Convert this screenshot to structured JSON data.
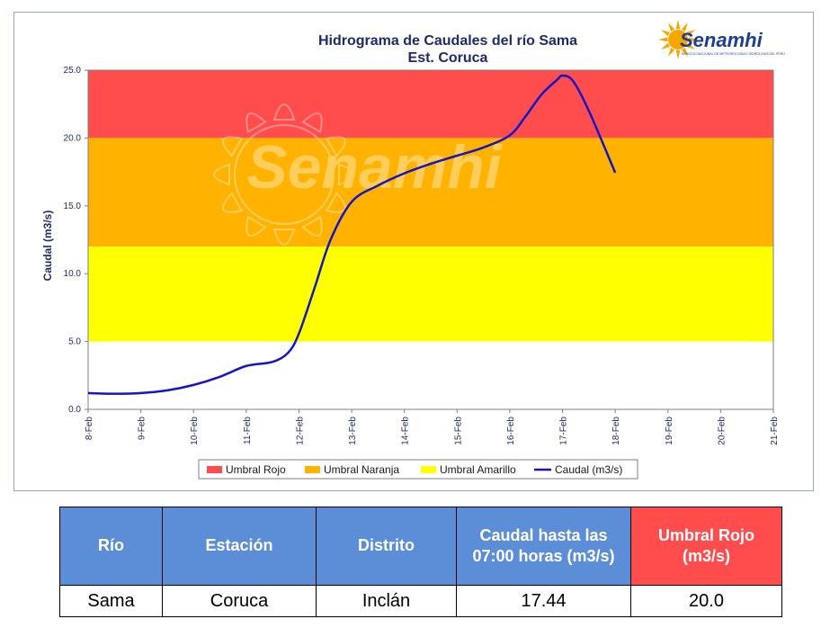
{
  "chart_data": {
    "type": "line",
    "title": "Hidrograma de Caudales del río Sama",
    "subtitle": "Est. Coruca",
    "ylabel": "Caudal (m3/s)",
    "xlabel": "",
    "ylim": [
      0,
      25
    ],
    "y_ticks": [
      "0.0",
      "5.0",
      "10.0",
      "15.0",
      "20.0",
      "25.0"
    ],
    "categories": [
      "8-Feb",
      "9-Feb",
      "10-Feb",
      "11-Feb",
      "12-Feb",
      "13-Feb",
      "14-Feb",
      "15-Feb",
      "16-Feb",
      "17-Feb",
      "18-Feb",
      "19-Feb",
      "20-Feb",
      "21-Feb"
    ],
    "bands": [
      {
        "name": "Umbral Rojo",
        "from": 20,
        "to": 25,
        "color": "#ff4d4d"
      },
      {
        "name": "Umbral Naranja",
        "from": 12,
        "to": 20,
        "color": "#ffb300"
      },
      {
        "name": "Umbral Amarillo",
        "from": 5,
        "to": 12,
        "color": "#ffff00"
      }
    ],
    "series": [
      {
        "name": "Caudal (m3/s)",
        "color": "#1414c8",
        "x": [
          0,
          0.5,
          1,
          1.5,
          2,
          2.5,
          3,
          3.5,
          3.8,
          4,
          4.3,
          4.6,
          5,
          5.5,
          6,
          6.5,
          7,
          7.5,
          8,
          8.3,
          8.6,
          8.9,
          9.0,
          9.2,
          9.5,
          10.0
        ],
        "values": [
          1.2,
          1.15,
          1.2,
          1.4,
          1.8,
          2.4,
          3.2,
          3.5,
          4.2,
          5.6,
          9.0,
          12.5,
          15.3,
          16.5,
          17.4,
          18.1,
          18.7,
          19.3,
          20.2,
          21.6,
          23.2,
          24.3,
          24.6,
          24.2,
          22.0,
          17.44
        ]
      }
    ],
    "grid": false,
    "legend_position": "bottom"
  },
  "legend": {
    "rojo": "Umbral Rojo",
    "naranja": "Umbral Naranja",
    "amarillo": "Umbral Amarillo",
    "caudal": "Caudal (m3/s)"
  },
  "logo": {
    "text": "Senamhi",
    "subtext": "SERVICIO NACIONAL DE METEOROLOGÍA E HIDROLOGÍA DEL PERÚ",
    "watermark": "Senamhi"
  },
  "colors": {
    "header_blue": "#5b8ed6",
    "header_red": "#ff4d4d",
    "line": "#1414c8",
    "title": "#1f2a6b"
  },
  "table": {
    "headers": {
      "rio": "Río",
      "estacion": "Estación",
      "distrito": "Distrito",
      "caudal_hasta": "Caudal hasta las 07:00 horas (m3/s)",
      "umbral_rojo": "Umbral  Rojo (m3/s)"
    },
    "row": {
      "rio": "Sama",
      "estacion": "Coruca",
      "distrito": "Inclán",
      "caudal": "17.44",
      "umbral": "20.0"
    }
  }
}
